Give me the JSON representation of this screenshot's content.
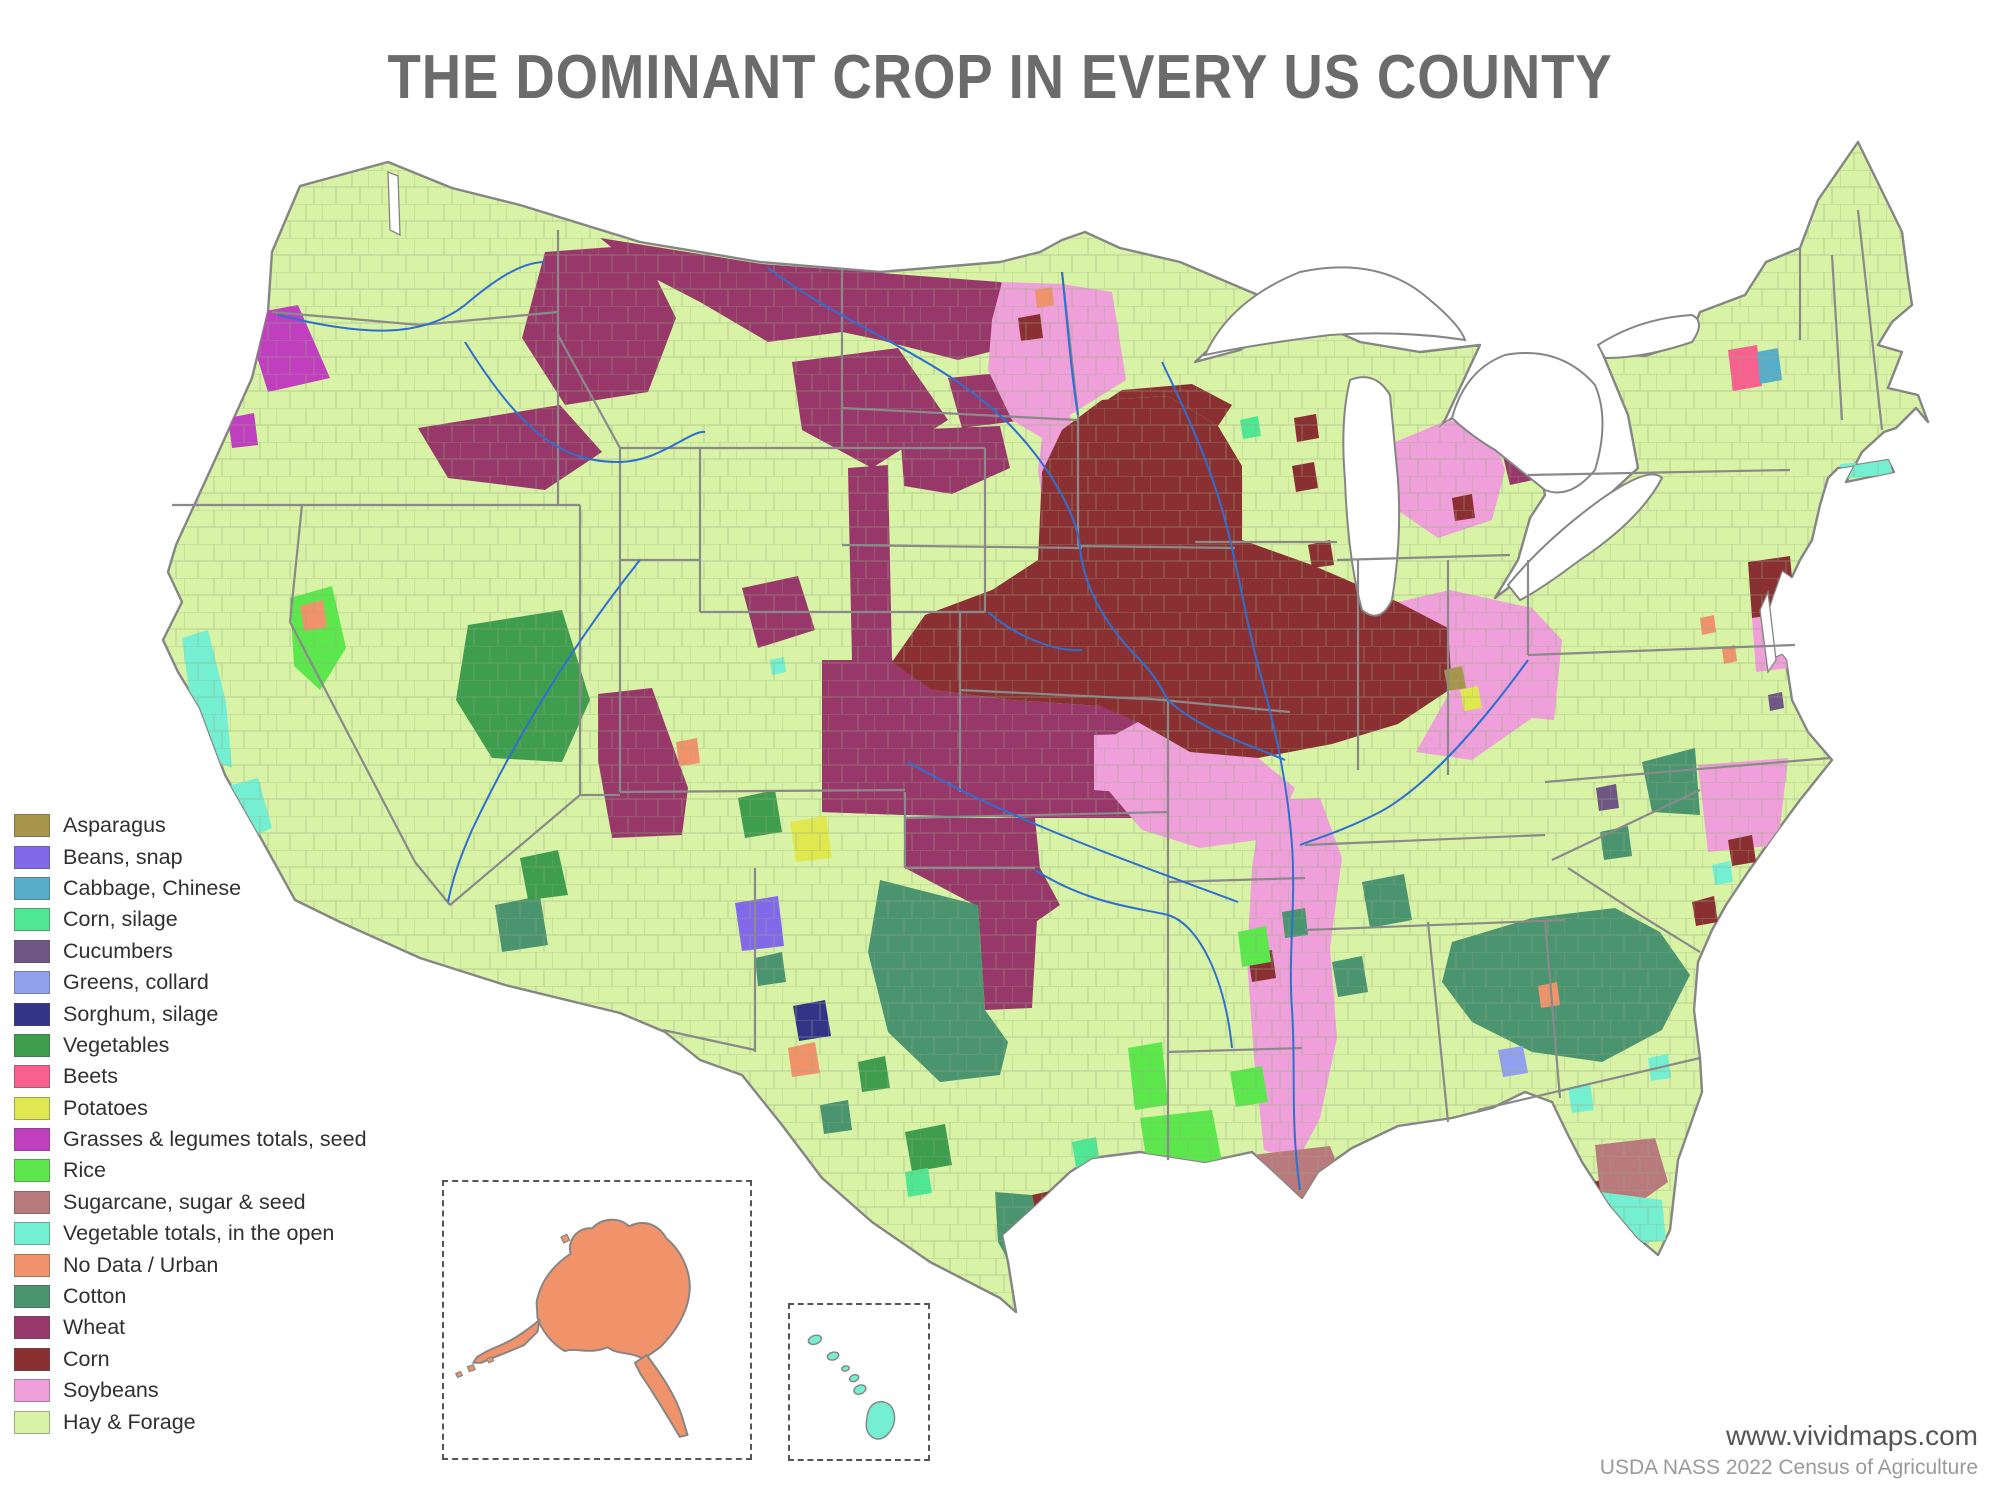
{
  "title": "THE DOMINANT CROP IN EVERY US COUNTY",
  "legend": {
    "items": [
      {
        "key": "asparagus",
        "label": "Asparagus",
        "color": "#a6954a"
      },
      {
        "key": "beans_snap",
        "label": "Beans, snap",
        "color": "#8169ea"
      },
      {
        "key": "cabbage_chinese",
        "label": "Cabbage, Chinese",
        "color": "#58aec9"
      },
      {
        "key": "corn_silage",
        "label": "Corn, silage",
        "color": "#4fe794"
      },
      {
        "key": "cucumbers",
        "label": "Cucumbers",
        "color": "#6f5684"
      },
      {
        "key": "greens_collard",
        "label": "Greens, collard",
        "color": "#92a1ed"
      },
      {
        "key": "sorghum_silage",
        "label": "Sorghum, silage",
        "color": "#333488"
      },
      {
        "key": "vegetables",
        "label": "Vegetables",
        "color": "#3f9e4e"
      },
      {
        "key": "beets",
        "label": "Beets",
        "color": "#f7608f"
      },
      {
        "key": "potatoes",
        "label": "Potatoes",
        "color": "#e0e84f"
      },
      {
        "key": "grasses_legumes",
        "label": "Grasses & legumes totals, seed",
        "color": "#bf3fbf"
      },
      {
        "key": "rice",
        "label": "Rice",
        "color": "#5ce84d"
      },
      {
        "key": "sugarcane",
        "label": "Sugarcane, sugar & seed",
        "color": "#b97a7d"
      },
      {
        "key": "vegetable_totals",
        "label": "Vegetable totals, in the open",
        "color": "#75efd2"
      },
      {
        "key": "no_data_urban",
        "label": "No Data / Urban",
        "color": "#f0936b"
      },
      {
        "key": "cotton",
        "label": "Cotton",
        "color": "#4a9470"
      },
      {
        "key": "wheat",
        "label": "Wheat",
        "color": "#98386a"
      },
      {
        "key": "corn",
        "label": "Corn",
        "color": "#8a3032"
      },
      {
        "key": "soybeans",
        "label": "Soybeans",
        "color": "#ef9fd9"
      },
      {
        "key": "hay_forage",
        "label": "Hay & Forage",
        "color": "#d8f2a6"
      }
    ]
  },
  "map": {
    "ocean_color": "#ffffff",
    "lake_color": "#ffffff",
    "county_line_color": "#94a87e",
    "state_line_color": "#8a8a8a",
    "border_color": "#858585",
    "river_color": "#2f6fd0",
    "base_key": "hay_forage",
    "insets": {
      "alaska": {
        "name": "Alaska",
        "fill_key": "no_data_urban"
      },
      "hawaii": {
        "name": "Hawaii",
        "fill_key": "vegetable_totals"
      }
    }
  },
  "attribution": {
    "line1": "www.vividmaps.com",
    "line2": "USDA NASS 2022 Census of Agriculture"
  }
}
